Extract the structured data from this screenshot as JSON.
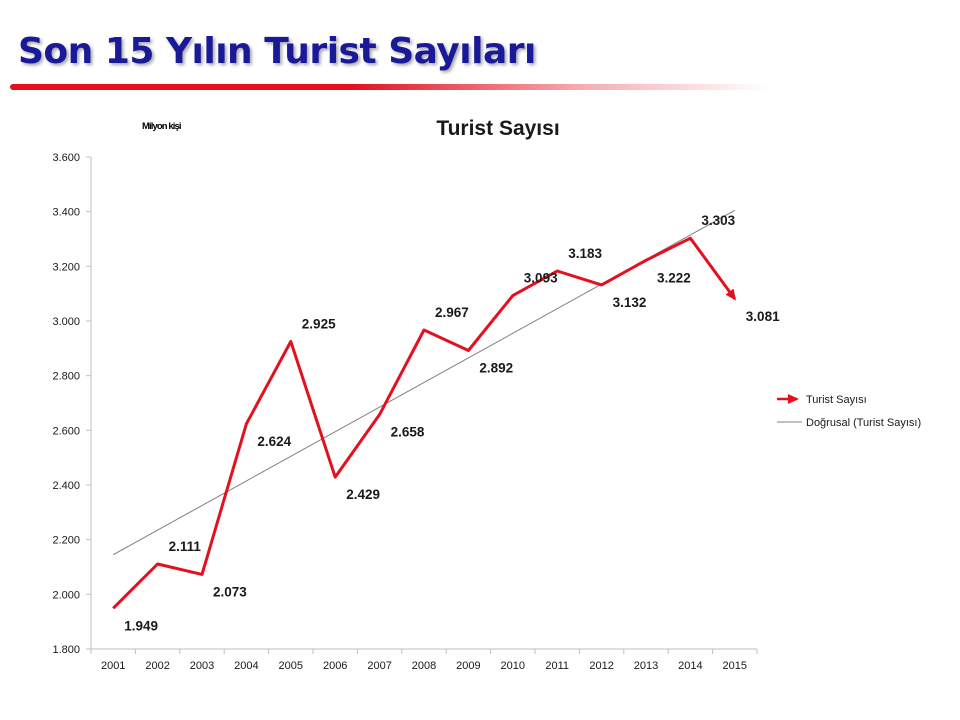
{
  "slide": {
    "title": "Son 15 Yılın Turist Sayıları"
  },
  "colors": {
    "title": "#1a1a99",
    "accent_rule": "#e3101f",
    "series": "#e3101f",
    "trend": "#808080",
    "axis": "#bfbfbf"
  },
  "chart_data": {
    "type": "line",
    "title": "Turist Sayısı",
    "unit_label": "Milyon kişi",
    "xlabel": "",
    "ylabel": "",
    "categories": [
      "2001",
      "2002",
      "2003",
      "2004",
      "2005",
      "2006",
      "2007",
      "2008",
      "2009",
      "2010",
      "2011",
      "2012",
      "2013",
      "2014",
      "2015"
    ],
    "series": [
      {
        "name": "Turist Sayısı",
        "values": [
          1.949,
          2.111,
          2.073,
          2.624,
          2.925,
          2.429,
          2.658,
          2.967,
          2.892,
          3.093,
          3.183,
          3.132,
          3.222,
          3.303,
          3.081
        ],
        "labels": [
          "1.949",
          "2.111",
          "2.073",
          "2.624",
          "2.925",
          "2.429",
          "2.658",
          "2.967",
          "2.892",
          "3.093",
          "3.183",
          "3.132",
          "3.222",
          "3.303",
          "3.081"
        ],
        "end_marker": "arrow"
      }
    ],
    "trendline": {
      "name": "Doğrusal (Turist Sayısı)",
      "type": "linear",
      "start": 2.145,
      "end": 3.405
    },
    "ylim": [
      1.8,
      3.6
    ],
    "yticks": [
      1.8,
      2.0,
      2.2,
      2.4,
      2.6,
      2.8,
      3.0,
      3.2,
      3.4,
      3.6
    ],
    "ytick_labels": [
      "1.800",
      "2.000",
      "2.200",
      "2.400",
      "2.600",
      "2.800",
      "3.000",
      "3.200",
      "3.400",
      "3.600"
    ],
    "grid": false,
    "legend": {
      "placement": "right",
      "entries": [
        "Turist Sayısı",
        "Doğrusal (Turist Sayısı)"
      ]
    }
  }
}
